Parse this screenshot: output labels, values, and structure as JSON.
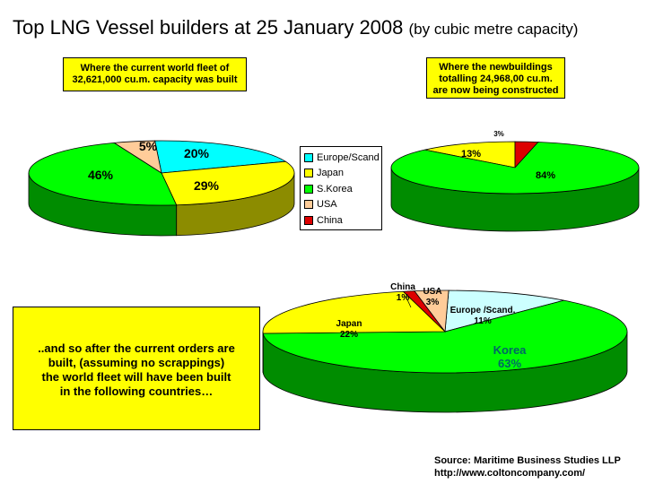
{
  "title": "Top LNG Vessel builders at 25 January 2008",
  "subtitle": "(by cubic metre capacity)",
  "boxes": {
    "current": [
      "Where the current world fleet of",
      "32,621,000 cu.m. capacity was built"
    ],
    "new": [
      "Where the newbuildings",
      "totalling 24,968,00 cu.m.",
      "are now being constructed"
    ],
    "after": [
      "..and so after the current orders are",
      "built, (assuming no scrappings)",
      "the world fleet will have been built",
      "in the following countries…"
    ]
  },
  "legend": [
    {
      "label": "Europe/Scand",
      "color": "#00ffff"
    },
    {
      "label": "Japan",
      "color": "#ffff00"
    },
    {
      "label": "S.Korea",
      "color": "#00ff00"
    },
    {
      "label": "USA",
      "color": "#ffcc99"
    },
    {
      "label": "China",
      "color": "#dd0000"
    }
  ],
  "source": [
    "Source: Maritime Business Studies LLP",
    "http://www.coltoncompany.com/"
  ],
  "chart_data": [
    {
      "type": "pie",
      "title": "Where the current world fleet of 32,621,000 cu.m. capacity was built",
      "slices": [
        {
          "name": "Europe/Scand",
          "value": 20,
          "label": "20%",
          "color": "#00ffff"
        },
        {
          "name": "Japan",
          "value": 29,
          "label": "29%",
          "color": "#ffff00"
        },
        {
          "name": "S.Korea",
          "value": 46,
          "label": "46%",
          "color": "#00ff00"
        },
        {
          "name": "USA",
          "value": 5,
          "label": "5%",
          "color": "#ffcc99"
        }
      ]
    },
    {
      "type": "pie",
      "title": "Where the newbuildings totalling 24,968,00 cu.m. are now being constructed",
      "slices": [
        {
          "name": "S.Korea",
          "value": 84,
          "label": "84%",
          "color": "#00ff00"
        },
        {
          "name": "Japan",
          "value": 13,
          "label": "13%",
          "color": "#ffff00"
        },
        {
          "name": "China",
          "value": 3,
          "label": "3%",
          "color": "#dd0000"
        }
      ]
    },
    {
      "type": "pie",
      "title": "..and so after the current orders are built, (assuming no scrappings) the world fleet will have been built in the following countries…",
      "slices": [
        {
          "name": "Europe /Scand.",
          "value": 11,
          "label": "Europe /Scand. 11%",
          "color": "#ccffff"
        },
        {
          "name": "Korea",
          "value": 63,
          "label": "Korea 63%",
          "color": "#00ff00"
        },
        {
          "name": "Japan",
          "value": 22,
          "label": "Japan 22%",
          "color": "#ffff00"
        },
        {
          "name": "China",
          "value": 1,
          "label": "China 1%",
          "color": "#dd0000"
        },
        {
          "name": "USA",
          "value": 3,
          "label": "USA 3%",
          "color": "#ffcc99"
        }
      ]
    }
  ]
}
